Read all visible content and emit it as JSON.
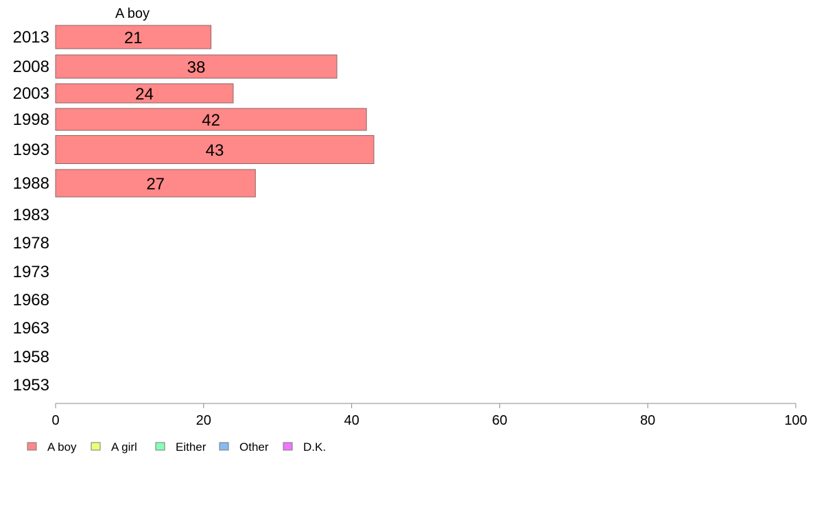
{
  "chart_data": {
    "type": "bar",
    "orientation": "horizontal",
    "series_title": "A boy",
    "categories": [
      "2013",
      "2008",
      "2003",
      "1998",
      "1993",
      "1988",
      "1983",
      "1978",
      "1973",
      "1968",
      "1963",
      "1958",
      "1953"
    ],
    "series": [
      {
        "name": "A boy",
        "color": "#ff8888",
        "values": [
          21,
          38,
          24,
          42,
          43,
          27,
          null,
          null,
          null,
          null,
          null,
          null,
          null
        ],
        "value_labels": [
          "21",
          "38",
          "24",
          "42",
          "43",
          "27",
          "",
          "",
          "",
          "",
          "",
          "",
          ""
        ]
      }
    ],
    "x_ticks": [
      "0",
      "20",
      "40",
      "60",
      "80",
      "100"
    ],
    "xlim": [
      0,
      100
    ],
    "grid": false,
    "legend_position": "bottom-left",
    "legend": [
      {
        "label": "A boy",
        "color": "#ff8888"
      },
      {
        "label": "A girl",
        "color": "#eeff77"
      },
      {
        "label": "Either",
        "color": "#88ffbb"
      },
      {
        "label": "Other",
        "color": "#88bbf0"
      },
      {
        "label": "D.K.",
        "color": "#ee77ff"
      }
    ]
  }
}
